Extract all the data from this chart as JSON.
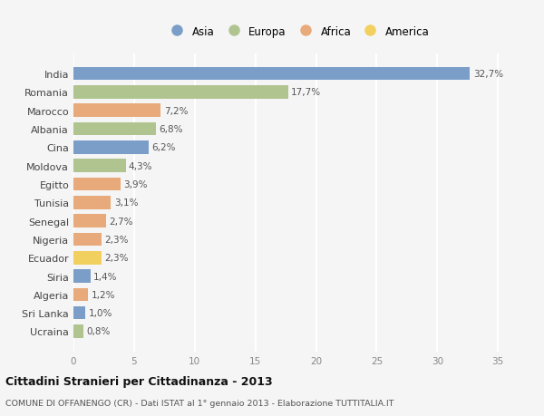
{
  "countries": [
    "India",
    "Romania",
    "Marocco",
    "Albania",
    "Cina",
    "Moldova",
    "Egitto",
    "Tunisia",
    "Senegal",
    "Nigeria",
    "Ecuador",
    "Siria",
    "Algeria",
    "Sri Lanka",
    "Ucraina"
  ],
  "values": [
    32.7,
    17.7,
    7.2,
    6.8,
    6.2,
    4.3,
    3.9,
    3.1,
    2.7,
    2.3,
    2.3,
    1.4,
    1.2,
    1.0,
    0.8
  ],
  "labels": [
    "32,7%",
    "17,7%",
    "7,2%",
    "6,8%",
    "6,2%",
    "4,3%",
    "3,9%",
    "3,1%",
    "2,7%",
    "2,3%",
    "2,3%",
    "1,4%",
    "1,2%",
    "1,0%",
    "0,8%"
  ],
  "continents": [
    "Asia",
    "Europa",
    "Africa",
    "Europa",
    "Asia",
    "Europa",
    "Africa",
    "Africa",
    "Africa",
    "Africa",
    "America",
    "Asia",
    "Africa",
    "Asia",
    "Europa"
  ],
  "colors": {
    "Asia": "#7b9ec9",
    "Europa": "#b0c490",
    "Africa": "#e8aa7a",
    "America": "#f2d060"
  },
  "legend_order": [
    "Asia",
    "Europa",
    "Africa",
    "America"
  ],
  "legend_colors": [
    "#7b9ec9",
    "#b0c490",
    "#e8aa7a",
    "#f2d060"
  ],
  "title": "Cittadini Stranieri per Cittadinanza - 2013",
  "subtitle": "COMUNE DI OFFANENGO (CR) - Dati ISTAT al 1° gennaio 2013 - Elaborazione TUTTITALIA.IT",
  "xlim": [
    0,
    37
  ],
  "xticks": [
    0,
    5,
    10,
    15,
    20,
    25,
    30,
    35
  ],
  "background_color": "#f5f5f5",
  "grid_color": "#ffffff",
  "bar_height": 0.72
}
